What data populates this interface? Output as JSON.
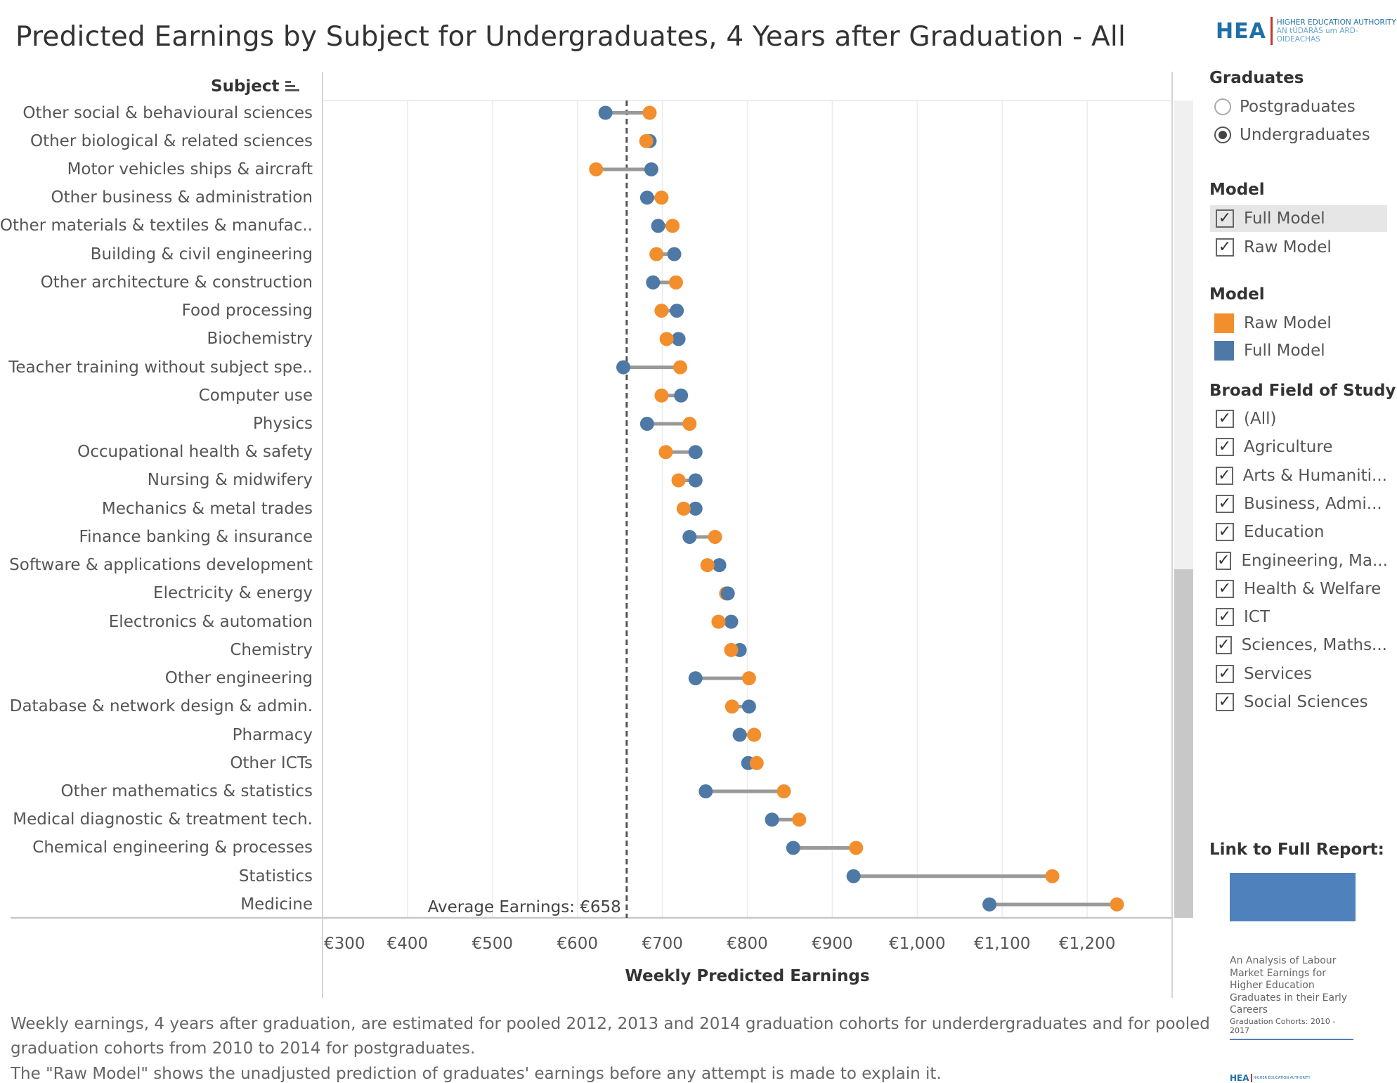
{
  "header": {
    "title": "Predicted Earnings by Subject for Undergraduates, 4 Years after Graduation - All",
    "logo": {
      "abbr": "HEA",
      "line1": "HIGHER EDUCATION AUTHORITY",
      "line2": "AN tÚDARÁS um ARD-OIDEACHAS"
    }
  },
  "chart_data": {
    "type": "dumbbell",
    "row_header": "Subject",
    "xlabel": "Weekly Predicted Earnings",
    "xlim": [
      300,
      1300
    ],
    "x_ticks": [
      300,
      400,
      500,
      600,
      700,
      800,
      900,
      1000,
      1100,
      1200
    ],
    "x_tick_labels": [
      "€300",
      "€400",
      "€500",
      "€600",
      "€700",
      "€800",
      "€900",
      "€1,000",
      "€1,100",
      "€1,200"
    ],
    "grid": true,
    "reference_line": {
      "value": 658,
      "label": "Average Earnings: €658"
    },
    "series": [
      {
        "name": "Raw Model",
        "color": "#f28e2b"
      },
      {
        "name": "Full Model",
        "color": "#4e79a7"
      }
    ],
    "categories": [
      "Other social & behavioural sciences",
      "Other biological & related sciences",
      "Motor vehicles ships & aircraft",
      "Other business & administration",
      "Other materials & textiles & manufac..",
      "Building & civil engineering",
      "Other architecture & construction",
      "Food processing",
      "Biochemistry",
      "Teacher training without subject spe..",
      "Computer use",
      "Physics",
      "Occupational health & safety",
      "Nursing & midwifery",
      "Mechanics & metal trades",
      "Finance banking & insurance",
      "Software & applications development",
      "Electricity & energy",
      "Electronics & automation",
      "Chemistry",
      "Other engineering",
      "Database & network design & admin.",
      "Pharmacy",
      "Other ICTs",
      "Other mathematics & statistics",
      "Medical diagnostic & treatment tech.",
      "Chemical engineering & processes",
      "Statistics",
      "Medicine"
    ],
    "raw_model": [
      685,
      681,
      622,
      699,
      712,
      693,
      716,
      699,
      705,
      721,
      699,
      732,
      704,
      719,
      725,
      762,
      753,
      775,
      766,
      781,
      802,
      782,
      808,
      811,
      843,
      861,
      928,
      1159,
      1235
    ],
    "full_model": [
      633,
      685,
      687,
      682,
      695,
      714,
      689,
      717,
      719,
      654,
      722,
      682,
      739,
      739,
      739,
      732,
      767,
      777,
      781,
      791,
      739,
      802,
      791,
      801,
      751,
      829,
      854,
      925,
      1085
    ]
  },
  "filters": {
    "graduates": {
      "title": "Graduates",
      "options": [
        {
          "label": "Postgraduates",
          "selected": false
        },
        {
          "label": "Undergraduates",
          "selected": true
        }
      ]
    },
    "model": {
      "title": "Model",
      "options": [
        {
          "label": "Full Model",
          "checked": true
        },
        {
          "label": "Raw Model",
          "checked": true
        }
      ]
    },
    "legend": {
      "title": "Model",
      "items": [
        {
          "label": "Raw Model",
          "color": "#f28e2b"
        },
        {
          "label": "Full Model",
          "color": "#4e79a7"
        }
      ]
    },
    "field": {
      "title": "Broad Field of Study",
      "options": [
        {
          "label": "(All)",
          "checked": true
        },
        {
          "label": "Agriculture",
          "checked": true
        },
        {
          "label": "Arts & Humaniti...",
          "checked": true
        },
        {
          "label": "Business, Admi...",
          "checked": true
        },
        {
          "label": "Education",
          "checked": true
        },
        {
          "label": "Engineering, Ma...",
          "checked": true
        },
        {
          "label": "Health & Welfare",
          "checked": true
        },
        {
          "label": "ICT",
          "checked": true
        },
        {
          "label": "Sciences, Maths...",
          "checked": true
        },
        {
          "label": "Services",
          "checked": true
        },
        {
          "label": "Social Sciences",
          "checked": true
        }
      ]
    },
    "check_glyph": "✓"
  },
  "report": {
    "title": "Link to Full Report:",
    "text": "An Analysis of Labour Market Earnings for Higher Education Graduates in their Early Careers",
    "subtitle": "Graduation Cohorts: 2010 - 2017"
  },
  "footnotes": [
    "Weekly earnings, 4 years after graduation, are estimated for pooled 2012, 2013 and 2014 graduation cohorts for underdergraduates and for pooled",
    "graduation cohorts from 2010 to 2014 for postgraduates.",
    "The \"Raw Model\" shows the unadjusted prediction of graduates' earnings before any attempt is made to explain it."
  ]
}
